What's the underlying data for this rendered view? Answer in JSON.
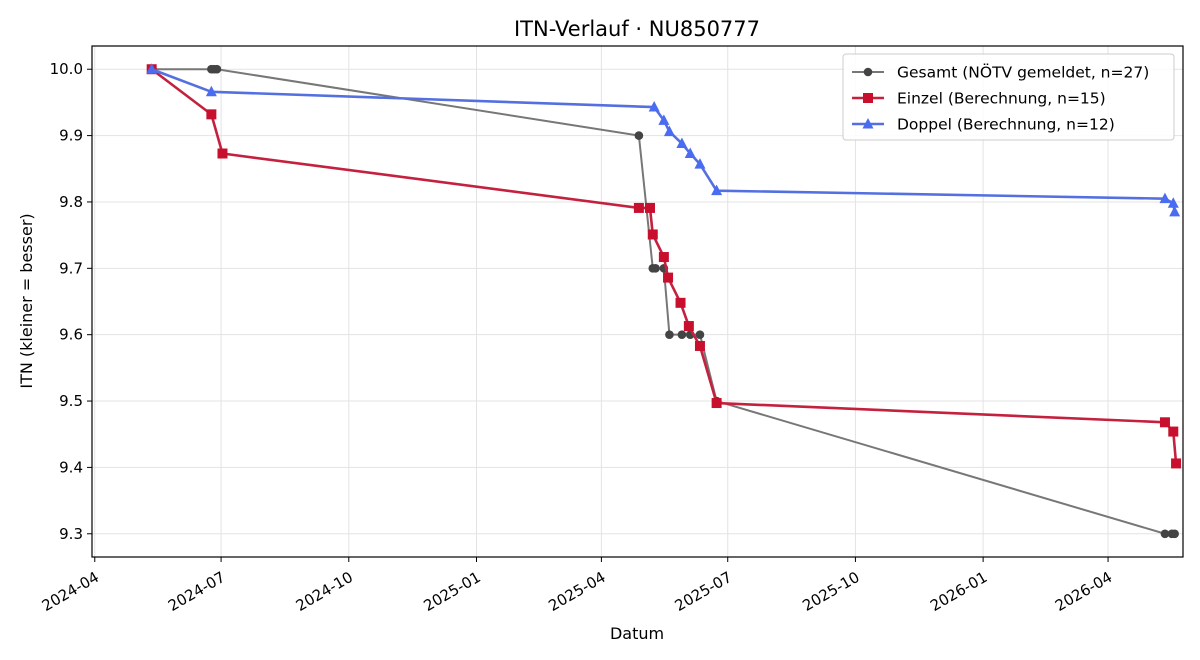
{
  "chart_data": {
    "type": "line",
    "title": "ITN-Verlauf · NU850777",
    "xlabel": "Datum",
    "ylabel": "ITN  (kleiner = besser)",
    "x_ticks": [
      "2024-04",
      "2024-07",
      "2024-10",
      "2025-01",
      "2025-04",
      "2025-07",
      "2025-10",
      "2026-01",
      "2026-04"
    ],
    "y_ticks": [
      "9.3",
      "9.4",
      "9.5",
      "9.6",
      "9.7",
      "9.8",
      "9.9",
      "10.0"
    ],
    "xlim": [
      "2024-03-30",
      "2026-05-25"
    ],
    "ylim": [
      9.265,
      10.035
    ],
    "grid": true,
    "legend_position": "top-right",
    "series": [
      {
        "name": "Gesamt (NÖTV gemeldet, n=27)",
        "color": "#777777",
        "marker_color": "#444444",
        "marker": "circle",
        "points": [
          {
            "x": "2024-05-12",
            "y": 10.0
          },
          {
            "x": "2024-06-24",
            "y": 10.0
          },
          {
            "x": "2024-06-26",
            "y": 10.0
          },
          {
            "x": "2024-06-28",
            "y": 10.0
          },
          {
            "x": "2025-04-28",
            "y": 9.9
          },
          {
            "x": "2025-05-08",
            "y": 9.7
          },
          {
            "x": "2025-05-10",
            "y": 9.7
          },
          {
            "x": "2025-05-16",
            "y": 9.7
          },
          {
            "x": "2025-05-20",
            "y": 9.6
          },
          {
            "x": "2025-05-29",
            "y": 9.6
          },
          {
            "x": "2025-06-04",
            "y": 9.6
          },
          {
            "x": "2025-06-11",
            "y": 9.6
          },
          {
            "x": "2025-06-23",
            "y": 9.5
          },
          {
            "x": "2026-05-12",
            "y": 9.3
          },
          {
            "x": "2026-05-17",
            "y": 9.3
          },
          {
            "x": "2026-05-19",
            "y": 9.3
          }
        ]
      },
      {
        "name": "Einzel (Berechnung, n=15)",
        "color": "#c4213f",
        "marker_color": "#c8102e",
        "marker": "square",
        "points": [
          {
            "x": "2024-05-12",
            "y": 10.0
          },
          {
            "x": "2024-06-24",
            "y": 9.932
          },
          {
            "x": "2024-07-02",
            "y": 9.873
          },
          {
            "x": "2025-04-28",
            "y": 9.791
          },
          {
            "x": "2025-05-06",
            "y": 9.791
          },
          {
            "x": "2025-05-08",
            "y": 9.751
          },
          {
            "x": "2025-05-16",
            "y": 9.717
          },
          {
            "x": "2025-05-19",
            "y": 9.686
          },
          {
            "x": "2025-05-28",
            "y": 9.648
          },
          {
            "x": "2025-06-03",
            "y": 9.613
          },
          {
            "x": "2025-06-11",
            "y": 9.583
          },
          {
            "x": "2025-06-23",
            "y": 9.497
          },
          {
            "x": "2026-05-12",
            "y": 9.468
          },
          {
            "x": "2026-05-18",
            "y": 9.454
          },
          {
            "x": "2026-05-20",
            "y": 9.406
          }
        ]
      },
      {
        "name": "Doppel (Berechnung, n=12)",
        "color": "#5470e0",
        "marker_color": "#4a6cf0",
        "marker": "triangle",
        "points": [
          {
            "x": "2024-05-12",
            "y": 10.0
          },
          {
            "x": "2024-06-24",
            "y": 9.966
          },
          {
            "x": "2025-05-09",
            "y": 9.943
          },
          {
            "x": "2025-05-16",
            "y": 9.923
          },
          {
            "x": "2025-05-20",
            "y": 9.906
          },
          {
            "x": "2025-05-29",
            "y": 9.888
          },
          {
            "x": "2025-06-04",
            "y": 9.873
          },
          {
            "x": "2025-06-11",
            "y": 9.857
          },
          {
            "x": "2025-06-23",
            "y": 9.817
          },
          {
            "x": "2026-05-12",
            "y": 9.805
          },
          {
            "x": "2026-05-18",
            "y": 9.798
          },
          {
            "x": "2026-05-19",
            "y": 9.785
          }
        ]
      }
    ]
  }
}
